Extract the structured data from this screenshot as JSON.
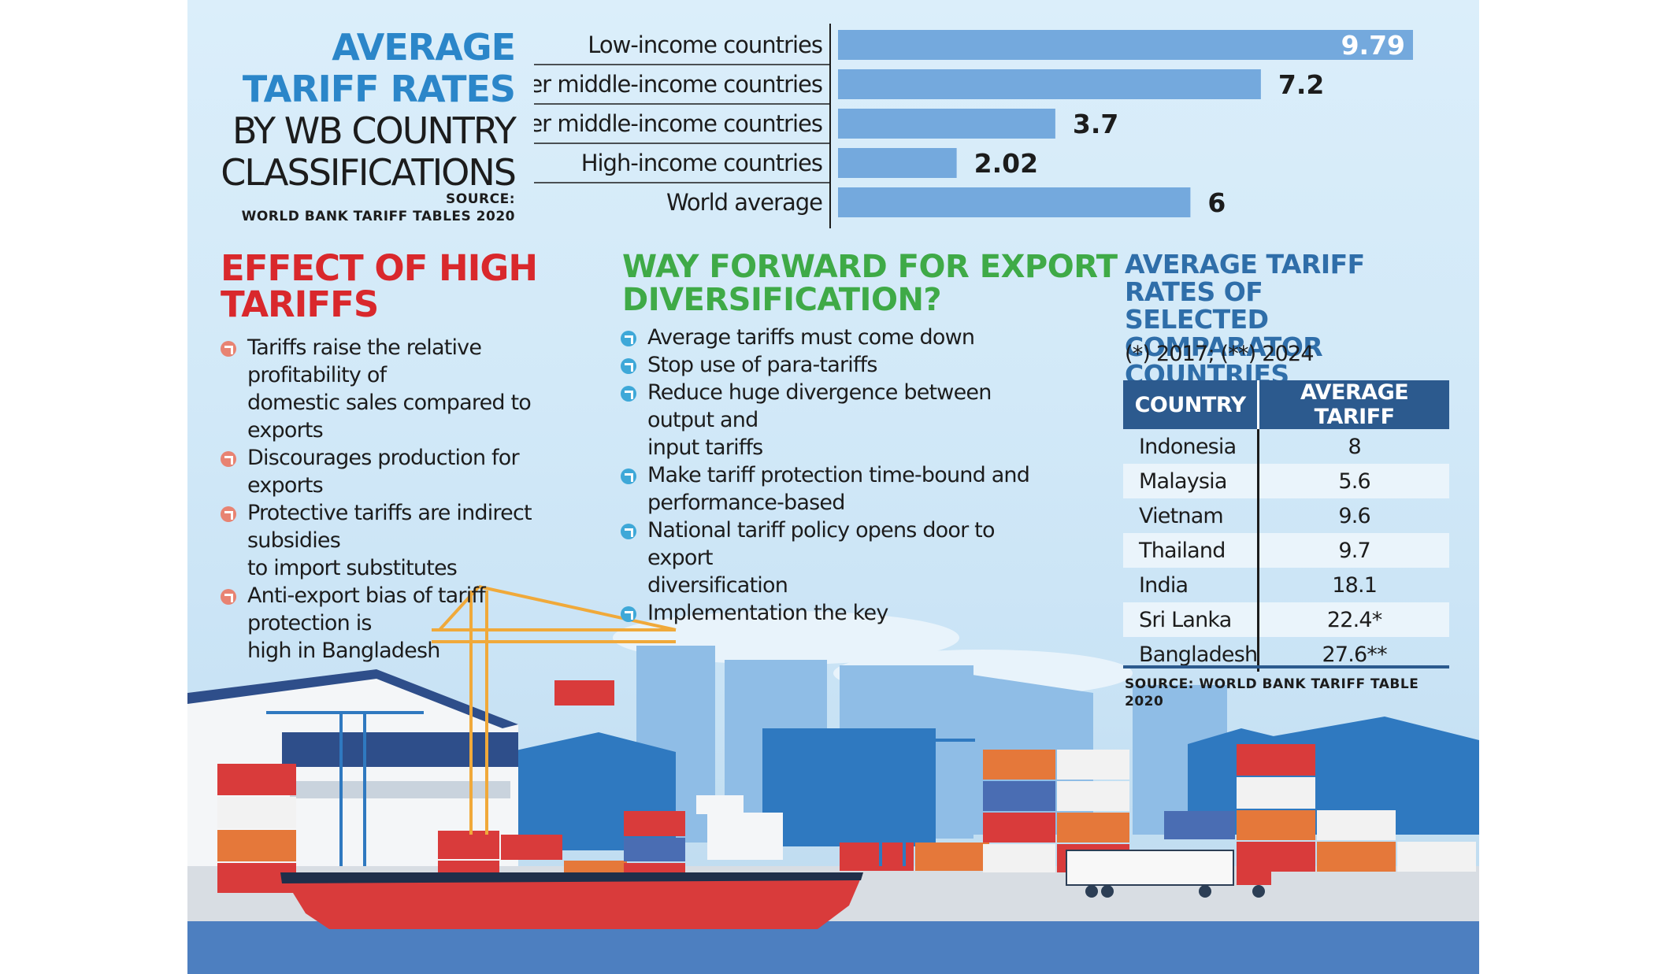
{
  "bar_chart": {
    "title_line1": "AVERAGE",
    "title_line2": "TARIFF RATES",
    "title_line3": "BY WB COUNTRY",
    "title_line4": "CLASSIFICATIONS",
    "source_label": "SOURCE:",
    "source_text": "WORLD BANK TARIFF TABLES 2020"
  },
  "chart_data": {
    "type": "bar",
    "orientation": "horizontal",
    "categories": [
      "Low-income countries",
      "Lower middle-income countries",
      "Upper middle-income countries",
      "High-income countries",
      "World average"
    ],
    "values": [
      9.79,
      7.2,
      3.7,
      2.02,
      6
    ],
    "value_labels": [
      "9.79",
      "7.2",
      "3.7",
      "2.02",
      "6"
    ],
    "xlim": [
      0,
      9.79
    ],
    "bar_color": "#74a9dd"
  },
  "effect": {
    "title_line1": "EFFECT OF HIGH",
    "title_line2": "TARIFFS",
    "items": [
      {
        "line1": "Tariffs raise the relative profitability of",
        "line2": "domestic sales compared to exports"
      },
      {
        "line1": "Discourages production for exports",
        "line2": ""
      },
      {
        "line1": "Protective tariffs are indirect subsidies",
        "line2": "to import substitutes"
      },
      {
        "line1": "Anti-export bias of tariff protection is",
        "line2": "high in Bangladesh"
      }
    ],
    "bullet_color": "#e88372"
  },
  "way_forward": {
    "title_line1": "WAY FORWARD FOR EXPORT",
    "title_line2": "DIVERSIFICATION?",
    "items": [
      {
        "line1": "Average tariffs must come down",
        "line2": ""
      },
      {
        "line1": "Stop use of para-tariffs",
        "line2": ""
      },
      {
        "line1": "Reduce huge divergence between output and",
        "line2": "input tariffs"
      },
      {
        "line1": "Make tariff protection time-bound and",
        "line2": "performance-based"
      },
      {
        "line1": "National tariff policy opens door to export",
        "line2": "diversification"
      },
      {
        "line1": "Implementation the key",
        "line2": ""
      }
    ],
    "bullet_color": "#3ea8d8"
  },
  "comparator": {
    "title_line1": "AVERAGE TARIFF RATES OF",
    "title_line2": "SELECTED COMPARATOR",
    "title_line3": "COUNTRIES",
    "note": "(*) 2017; (**) 2024",
    "header_country": "COUNTRY",
    "header_tariff": "AVERAGE TARIFF",
    "rows": [
      {
        "country": "Indonesia",
        "tariff": "8"
      },
      {
        "country": "Malaysia",
        "tariff": "5.6"
      },
      {
        "country": "Vietnam",
        "tariff": "9.6"
      },
      {
        "country": "Thailand",
        "tariff": "9.7"
      },
      {
        "country": "India",
        "tariff": "18.1"
      },
      {
        "country": "Sri Lanka",
        "tariff": "22.4*"
      },
      {
        "country": "Bangladesh",
        "tariff": "27.6**"
      }
    ],
    "source_line1": "SOURCE: WORLD BANK TARIFF TABLE",
    "source_line2": "2020"
  },
  "colors": {
    "title_blue": "#2b86c9",
    "effect_red": "#d9282c",
    "way_green": "#3faa47",
    "table_header": "#2c5a8e"
  }
}
